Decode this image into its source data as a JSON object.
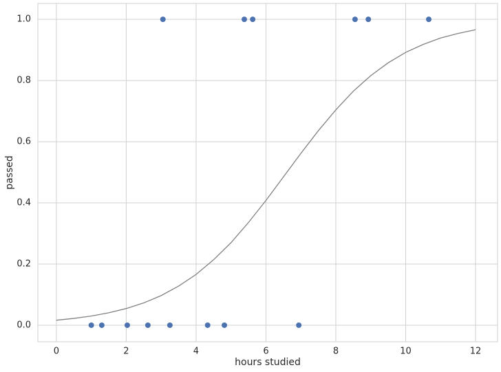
{
  "chart_data": {
    "type": "scatter",
    "xlabel": "hours studied",
    "ylabel": "passed",
    "xlim": [
      -0.53,
      12.63
    ],
    "ylim": [
      -0.054,
      1.052
    ],
    "xticks": [
      0,
      2,
      4,
      6,
      8,
      10,
      12
    ],
    "yticks": [
      {
        "value": 0,
        "label": "0.0"
      },
      {
        "value": 0.2,
        "label": "0.2"
      },
      {
        "value": 0.4,
        "label": "0.4"
      },
      {
        "value": 0.6,
        "label": "0.6"
      },
      {
        "value": 0.8,
        "label": "0.8"
      },
      {
        "value": 1,
        "label": "1.0"
      }
    ],
    "grid": true,
    "series": [
      {
        "type": "scatter",
        "color": "#4c72b0",
        "x": [
          3.05,
          5.38,
          5.62,
          8.55,
          8.93,
          10.66,
          1.0,
          1.3,
          2.03,
          2.62,
          3.25,
          4.33,
          4.81,
          6.94
        ],
        "values": [
          1,
          1,
          1,
          1,
          1,
          1,
          0,
          0,
          0,
          0,
          0,
          0,
          0,
          0
        ]
      },
      {
        "type": "line",
        "color": "#808080",
        "x": [
          0,
          0.5,
          1,
          1.5,
          2,
          2.5,
          3,
          3.5,
          4,
          4.5,
          5,
          5.5,
          6,
          6.5,
          7,
          7.5,
          8,
          8.5,
          9,
          9.5,
          10,
          10.5,
          11,
          11.5,
          12
        ],
        "values": [
          0.0164,
          0.0223,
          0.0301,
          0.0406,
          0.0546,
          0.0729,
          0.0969,
          0.128,
          0.166,
          0.214,
          0.27,
          0.336,
          0.408,
          0.485,
          0.562,
          0.636,
          0.704,
          0.765,
          0.816,
          0.858,
          0.892,
          0.918,
          0.939,
          0.954,
          0.966
        ]
      }
    ]
  }
}
